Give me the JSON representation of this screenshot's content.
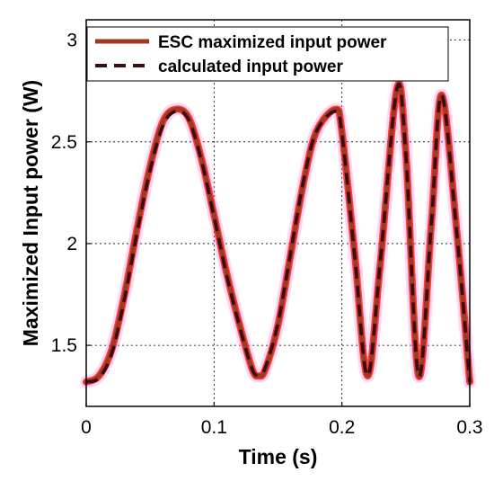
{
  "chart_data": {
    "type": "line",
    "title": "",
    "xlabel": "Time (s)",
    "ylabel": "Maximized Input power (W)",
    "xlim": [
      0,
      0.3
    ],
    "ylim": [
      1.2,
      3.1
    ],
    "xticks": [
      0,
      0.1,
      0.2,
      0.3
    ],
    "xtick_labels": [
      "0",
      "0.1",
      "0.2",
      "0.3"
    ],
    "yticks": [
      1.5,
      2,
      2.5,
      3
    ],
    "ytick_labels": [
      "1.5",
      "2",
      "2.5",
      "3"
    ],
    "grid": "dotted",
    "legend_position": "top",
    "series": [
      {
        "name": "ESC maximized input power",
        "color": "#a0391f",
        "style": "solid",
        "x": [
          0,
          0.01,
          0.02,
          0.03,
          0.04,
          0.05,
          0.06,
          0.07,
          0.08,
          0.09,
          0.1,
          0.11,
          0.12,
          0.13,
          0.135,
          0.14,
          0.15,
          0.16,
          0.17,
          0.18,
          0.195,
          0.2,
          0.21,
          0.22,
          0.23,
          0.243,
          0.25,
          0.26,
          0.27,
          0.278,
          0.29,
          0.3
        ],
        "y": [
          1.32,
          1.35,
          1.48,
          1.75,
          2.08,
          2.38,
          2.6,
          2.66,
          2.62,
          2.42,
          2.14,
          1.85,
          1.6,
          1.38,
          1.35,
          1.38,
          1.6,
          1.95,
          2.3,
          2.55,
          2.66,
          2.55,
          1.95,
          1.35,
          1.9,
          2.76,
          2.45,
          1.35,
          2.1,
          2.73,
          2.05,
          1.32
        ]
      },
      {
        "name": "calculated input power",
        "color": "#3a0d10",
        "style": "dashed",
        "x": [
          0,
          0.01,
          0.02,
          0.03,
          0.04,
          0.05,
          0.06,
          0.07,
          0.08,
          0.09,
          0.1,
          0.11,
          0.12,
          0.13,
          0.135,
          0.14,
          0.15,
          0.16,
          0.17,
          0.18,
          0.195,
          0.2,
          0.21,
          0.22,
          0.23,
          0.243,
          0.25,
          0.26,
          0.27,
          0.278,
          0.29,
          0.3
        ],
        "y": [
          1.32,
          1.34,
          1.46,
          1.73,
          2.06,
          2.36,
          2.58,
          2.65,
          2.61,
          2.41,
          2.13,
          1.84,
          1.59,
          1.38,
          1.36,
          1.39,
          1.61,
          1.96,
          2.31,
          2.55,
          2.65,
          2.54,
          1.94,
          1.35,
          1.91,
          2.76,
          2.44,
          1.35,
          2.1,
          2.73,
          2.04,
          1.32
        ]
      }
    ]
  }
}
